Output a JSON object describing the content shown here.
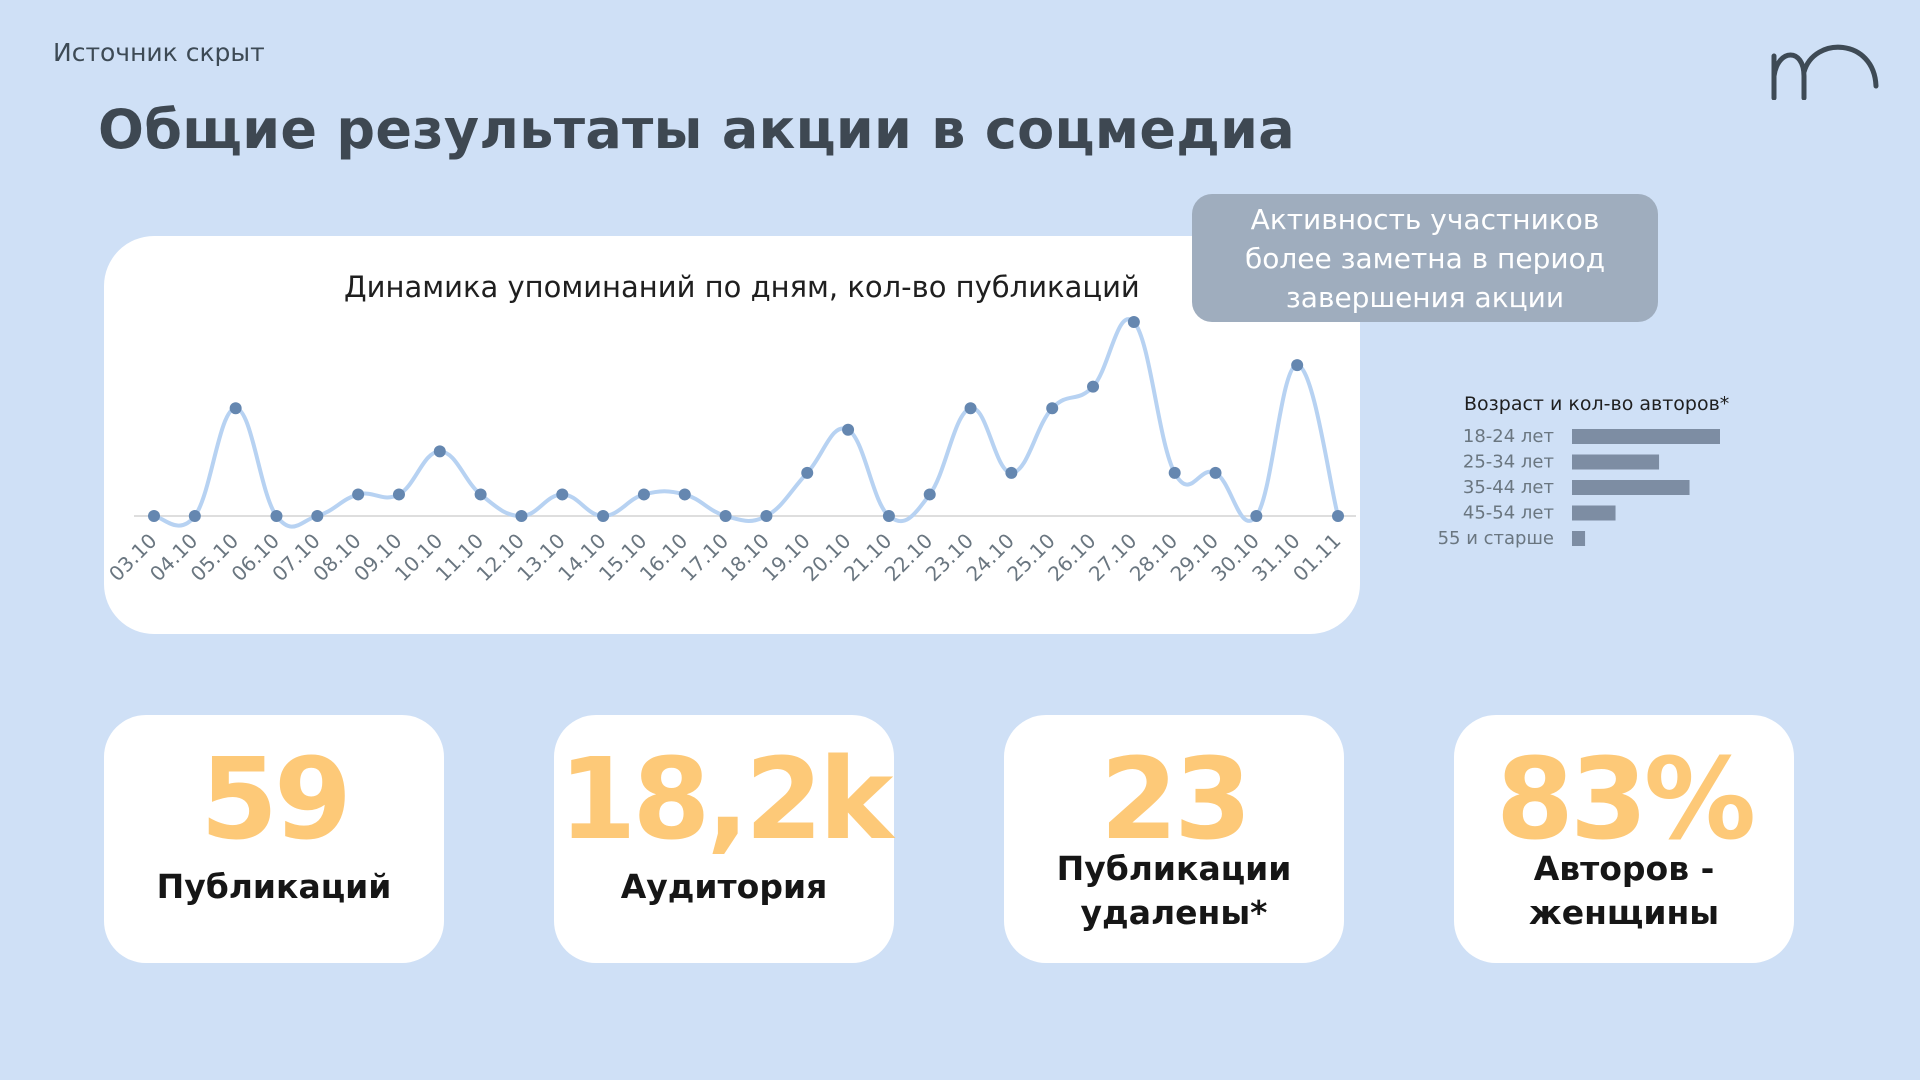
{
  "header": {
    "source": "Источник скрыт",
    "title": "Общие результаты акции в соцмедиа"
  },
  "note": {
    "text": "Активность участников более заметна в период завершения акции"
  },
  "chart_data": [
    {
      "type": "line",
      "title": "Динамика упоминаний по дням, кол-во публикаций",
      "x": [
        "03.10",
        "04.10",
        "05.10",
        "06.10",
        "07.10",
        "08.10",
        "09.10",
        "10.10",
        "11.10",
        "12.10",
        "13.10",
        "14.10",
        "15.10",
        "16.10",
        "17.10",
        "18.10",
        "19.10",
        "20.10",
        "21.10",
        "22.10",
        "23.10",
        "24.10",
        "25.10",
        "26.10",
        "27.10",
        "28.10",
        "29.10",
        "30.10",
        "31.10",
        "01.11"
      ],
      "series": [
        {
          "values": [
            0,
            0,
            5,
            0,
            0,
            1,
            1,
            3,
            1,
            0,
            1,
            0,
            1,
            1,
            0,
            0,
            2,
            4,
            0,
            1,
            5,
            2,
            5,
            6,
            9,
            2,
            2,
            0,
            7,
            0
          ]
        }
      ],
      "ylim": [
        0,
        9
      ],
      "color": "#b7d2f2",
      "marker_color": "#6587b0",
      "grid": false
    },
    {
      "type": "bar",
      "orientation": "horizontal",
      "title": "Возраст  и кол-во авторов*",
      "categories": [
        "18-24 лет",
        "25-34 лет",
        "35-44 лет",
        "45-54 лет",
        "55 и старше"
      ],
      "values": [
        17,
        10,
        13.5,
        5,
        1.5
      ],
      "color": "#7d8da3"
    }
  ],
  "stats": [
    {
      "value": "59",
      "label": "Публикаций"
    },
    {
      "value": "18,2k",
      "label": "Аудитория"
    },
    {
      "value": "23",
      "label": "Публикации удалены*"
    },
    {
      "value": "83%",
      "label": "Авторов - женщины"
    }
  ],
  "colors": {
    "background": "#cfe0f6",
    "card": "#ffffff",
    "accent": "#fdc978",
    "note_bg": "#9fadbe"
  }
}
